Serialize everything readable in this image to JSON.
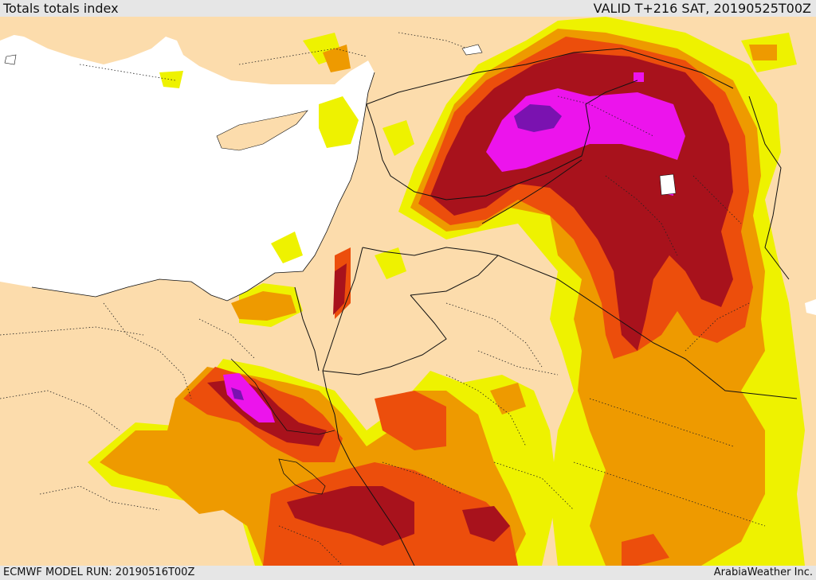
{
  "header": {
    "title": "Totals totals index",
    "valid_time": "VALID T+216 SAT, 20190525T00Z"
  },
  "footer": {
    "model_run": "ECMWF MODEL RUN: 20190516T00Z",
    "credit": "ArabiaWeather Inc."
  },
  "colors": {
    "land": "#fcdcac",
    "sea": "#ffffff",
    "level_1": "#eef200",
    "level_2": "#ee9a00",
    "level_3": "#ec4e0c",
    "level_4": "#a8121c",
    "level_5": "#ec14ec",
    "level_6": "#7a12b0",
    "border": "#111111"
  }
}
